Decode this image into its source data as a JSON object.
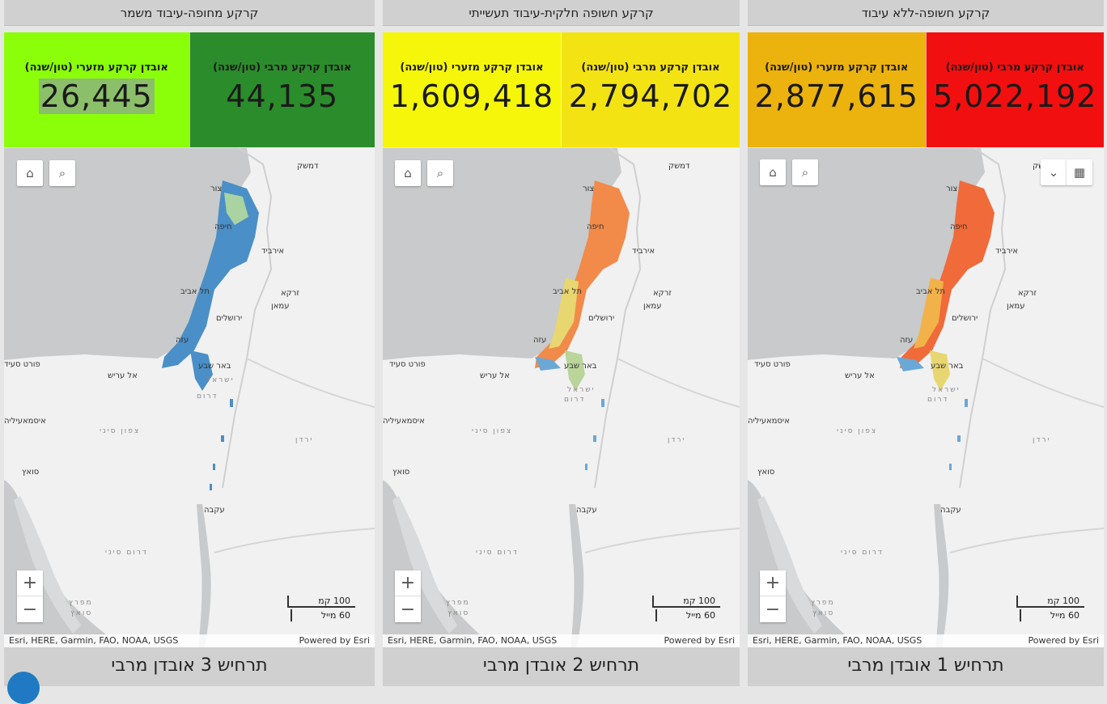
{
  "panels": [
    {
      "title": "קרקע מחופה-עיבוד משמר",
      "stats": [
        {
          "label": "אובדן קרקע מרבי (טון/שנה)",
          "value": "44,135",
          "bg": "#2b8c2b"
        },
        {
          "label": "אובדן קרקע מזערי (טון/שנה)",
          "value": "26,445",
          "bg": "#8bff0a",
          "highlight": "#8cbf6a"
        }
      ],
      "scenario": "תרחיש 3 אובדן מרבי"
    },
    {
      "title": "קרקע חשופה חלקית-עיבוד תעשייתי",
      "stats": [
        {
          "label": "אובדן קרקע מרבי (טון/שנה)",
          "value": "2,794,702",
          "bg": "#f4e313"
        },
        {
          "label": "אובדן קרקע מזערי (טון/שנה)",
          "value": "1,609,418",
          "bg": "#f6f60a"
        }
      ],
      "scenario": "תרחיש 2 אובדן מרבי"
    },
    {
      "title": "קרקע חשופה-ללא עיבוד",
      "stats": [
        {
          "label": "אובדן קרקע מרבי (טון/שנה)",
          "value": "5,022,192",
          "bg": "#f20f0f"
        },
        {
          "label": "אובדן קרקע מזערי (טון/שנה)",
          "value": "2,877,615",
          "bg": "#ecb20d"
        }
      ],
      "scenario": "תרחיש 1 אובדן מרבי"
    }
  ],
  "map": {
    "labels": {
      "damascus": "דמשק",
      "tyre": "צור",
      "haifa": "חיפה",
      "irbid": "אירביד",
      "telaviv": "תל אביב",
      "zarqa": "זרקא",
      "amman": "עמאן",
      "jerusalem": "ירושלים",
      "gaza": "עזה",
      "beersheba": "באר שבע",
      "portsaid": "פורט סעיד",
      "arish": "אל עריש",
      "south": "דרום",
      "israel": "ישראל",
      "ismailia": "איסמאעיליה",
      "northsinai": "צפון סיני",
      "jordan": "ירדן",
      "suez": "סואץ",
      "aqaba": "עקבה",
      "southsinai": "דרום סיני",
      "gulfsuez1": "מפרץ",
      "gulfsuez2": "סואץ"
    },
    "scale_km": "100 קמ",
    "scale_mi": "60 מייל",
    "attribution": "Esri, HERE, Garmin, FAO, NOAA, USGS",
    "powered": "Powered by Esri",
    "zoom_in": "+",
    "zoom_out": "−",
    "home_icon": "⌂",
    "search_icon": "⌕",
    "expand_icon": "⌄",
    "basemap_icon": "▦"
  },
  "colors": {
    "scenario3_fill": "#4a8fc7",
    "scenario2_warm": "#f28a4a",
    "scenario1_warm": "#f06a3a"
  }
}
